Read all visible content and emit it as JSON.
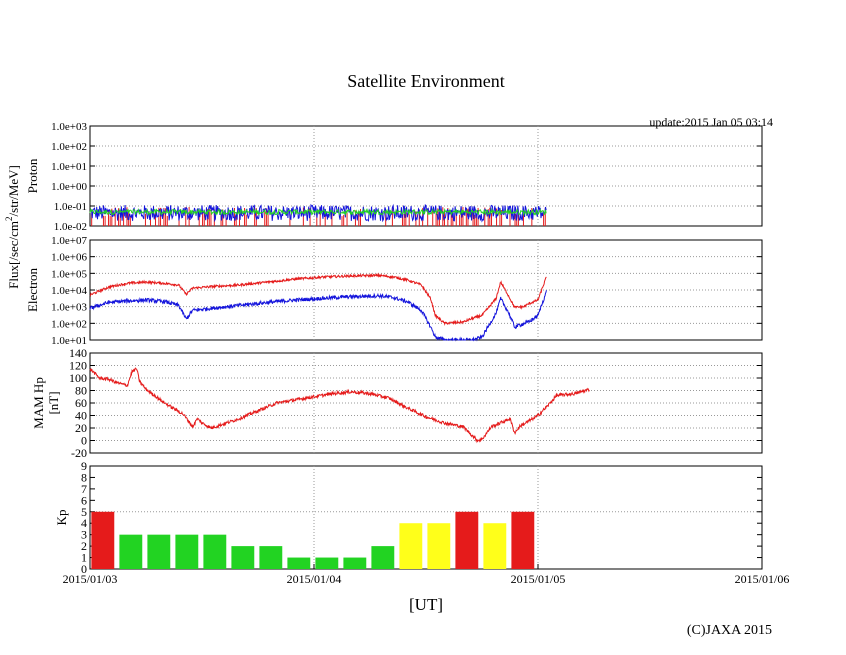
{
  "title": "Satellite Environment",
  "update_label": "update:2015 Jan 05 03:14",
  "copyright": "(C)JAXA 2015",
  "flux_ylabel_prefix": "Flux[/sec/cm",
  "flux_ylabel_exp": "2",
  "flux_ylabel_suffix": "/str/MeV]",
  "colors": {
    "red": "#e51b1b",
    "green": "#22d322",
    "blue": "#1414dc",
    "yellow": "#ffff1a",
    "grid": "#999999"
  },
  "chart_data": [
    {
      "type": "line",
      "name": "proton",
      "ylabel": "Proton",
      "yscale": "log",
      "ylim": [
        0.01,
        1000
      ],
      "ytick_labels": [
        "1.0e-02",
        "1.0e-01",
        "1.0e+00",
        "1.0e+01",
        "1.0e+02",
        "1.0e+03"
      ],
      "xlim_hours": [
        0,
        72
      ],
      "data_end_hour": 48.9,
      "series": [
        {
          "name": "proton-red",
          "color": "red",
          "level": 0.012,
          "spike_to": 0.06
        },
        {
          "name": "proton-green",
          "color": "green",
          "level": 0.05,
          "noise_dec": 0.12
        },
        {
          "name": "proton-blue",
          "color": "blue",
          "level": 0.045,
          "noise_dec": 0.35
        }
      ]
    },
    {
      "type": "line",
      "name": "electron",
      "ylabel": "Electron",
      "yscale": "log",
      "ylim": [
        10,
        10000000
      ],
      "ytick_labels": [
        "1.0e+01",
        "1.0e+02",
        "1.0e+03",
        "1.0e+04",
        "1.0e+05",
        "1.0e+06",
        "1.0e+07"
      ],
      "xlim_hours": [
        0,
        72
      ],
      "series": [
        {
          "name": "electron-red",
          "color": "red",
          "points": [
            [
              0,
              5000
            ],
            [
              2,
              15000
            ],
            [
              4,
              25000
            ],
            [
              6,
              30000
            ],
            [
              8,
              25000
            ],
            [
              9.5,
              20000
            ],
            [
              10.3,
              5500
            ],
            [
              11,
              13000
            ],
            [
              13,
              16000
            ],
            [
              16,
              20000
            ],
            [
              19,
              30000
            ],
            [
              22,
              45000
            ],
            [
              25,
              60000
            ],
            [
              28,
              70000
            ],
            [
              31,
              75000
            ],
            [
              32.5,
              60000
            ],
            [
              34,
              40000
            ],
            [
              35.5,
              20000
            ],
            [
              36.5,
              3000
            ],
            [
              37,
              300
            ],
            [
              38,
              100
            ],
            [
              40,
              120
            ],
            [
              41,
              200
            ],
            [
              42,
              300
            ],
            [
              43.5,
              3000
            ],
            [
              44,
              30000
            ],
            [
              44.8,
              5000
            ],
            [
              45.5,
              900
            ],
            [
              46.5,
              1000
            ],
            [
              47,
              1500
            ],
            [
              48,
              2500
            ],
            [
              48.9,
              60000
            ]
          ]
        },
        {
          "name": "electron-blue",
          "color": "blue",
          "points": [
            [
              0,
              800
            ],
            [
              2,
              1800
            ],
            [
              4,
              2200
            ],
            [
              6,
              2500
            ],
            [
              8,
              2000
            ],
            [
              9.5,
              1200
            ],
            [
              10.3,
              180
            ],
            [
              11,
              600
            ],
            [
              13,
              800
            ],
            [
              16,
              1200
            ],
            [
              19,
              1800
            ],
            [
              22,
              2500
            ],
            [
              25,
              3200
            ],
            [
              28,
              4000
            ],
            [
              31,
              4500
            ],
            [
              32.5,
              3500
            ],
            [
              34,
              2000
            ],
            [
              35.5,
              600
            ],
            [
              36.5,
              60
            ],
            [
              37,
              15
            ],
            [
              38,
              10
            ],
            [
              40,
              10
            ],
            [
              41,
              10
            ],
            [
              42,
              15
            ],
            [
              43.5,
              400
            ],
            [
              44,
              3000
            ],
            [
              44.8,
              500
            ],
            [
              45.5,
              60
            ],
            [
              46.5,
              100
            ],
            [
              47,
              120
            ],
            [
              48,
              300
            ],
            [
              48.9,
              8000
            ]
          ]
        }
      ]
    },
    {
      "type": "line",
      "name": "mam-hp",
      "ylabel_line1": "MAM Hp",
      "ylabel_line2": "[nT]",
      "ylim": [
        -20,
        140
      ],
      "yticks": [
        -20,
        0,
        20,
        40,
        60,
        80,
        100,
        120,
        140
      ],
      "ytick_labels": [
        "-20",
        "0",
        "20",
        "40",
        "60",
        "80",
        "100",
        "120",
        "140"
      ],
      "xlim_hours": [
        0,
        72
      ],
      "series": [
        {
          "name": "mam-hp-red",
          "color": "red",
          "points": [
            [
              0,
              115
            ],
            [
              1,
              100
            ],
            [
              2,
              98
            ],
            [
              3,
              92
            ],
            [
              4,
              88
            ],
            [
              4.5,
              110
            ],
            [
              5,
              115
            ],
            [
              5.3,
              95
            ],
            [
              6,
              82
            ],
            [
              8,
              60
            ],
            [
              10,
              42
            ],
            [
              11,
              22
            ],
            [
              11.5,
              35
            ],
            [
              12,
              28
            ],
            [
              13,
              20
            ],
            [
              16,
              35
            ],
            [
              20,
              60
            ],
            [
              24,
              70
            ],
            [
              26,
              75
            ],
            [
              28,
              78
            ],
            [
              30,
              75
            ],
            [
              32,
              68
            ],
            [
              34,
              52
            ],
            [
              36,
              38
            ],
            [
              38,
              28
            ],
            [
              40,
              22
            ],
            [
              41.5,
              0
            ],
            [
              42,
              2
            ],
            [
              43,
              22
            ],
            [
              45,
              35
            ],
            [
              45.5,
              12
            ],
            [
              46,
              22
            ],
            [
              48,
              40
            ],
            [
              49,
              55
            ],
            [
              50,
              72
            ],
            [
              52,
              75
            ],
            [
              53.5,
              82
            ]
          ]
        }
      ]
    },
    {
      "type": "bar",
      "name": "kp",
      "ylabel": "Kp",
      "ylim": [
        0,
        9
      ],
      "yticks": [
        0,
        1,
        2,
        3,
        4,
        5,
        6,
        7,
        8,
        9
      ],
      "ytick_labels": [
        "0",
        "1",
        "2",
        "3",
        "4",
        "5",
        "6",
        "7",
        "8",
        "9"
      ],
      "xlim_hours": [
        0,
        72
      ],
      "bar_width_hours": 3,
      "start_hours": [
        0,
        3,
        6,
        9,
        12,
        15,
        18,
        21,
        24,
        27,
        30,
        33,
        36,
        39,
        42,
        45
      ],
      "values": [
        5,
        3,
        3,
        3,
        3,
        2,
        2,
        1,
        1,
        1,
        2,
        4,
        4,
        5,
        4,
        5
      ],
      "bar_colors": [
        "red",
        "green",
        "green",
        "green",
        "green",
        "green",
        "green",
        "green",
        "green",
        "green",
        "green",
        "yellow",
        "yellow",
        "red",
        "yellow",
        "red"
      ]
    }
  ],
  "x_tick_labels": [
    "2015/01/03",
    "2015/01/04",
    "2015/01/05",
    "2015/01/06"
  ],
  "xlabel": "[UT]"
}
